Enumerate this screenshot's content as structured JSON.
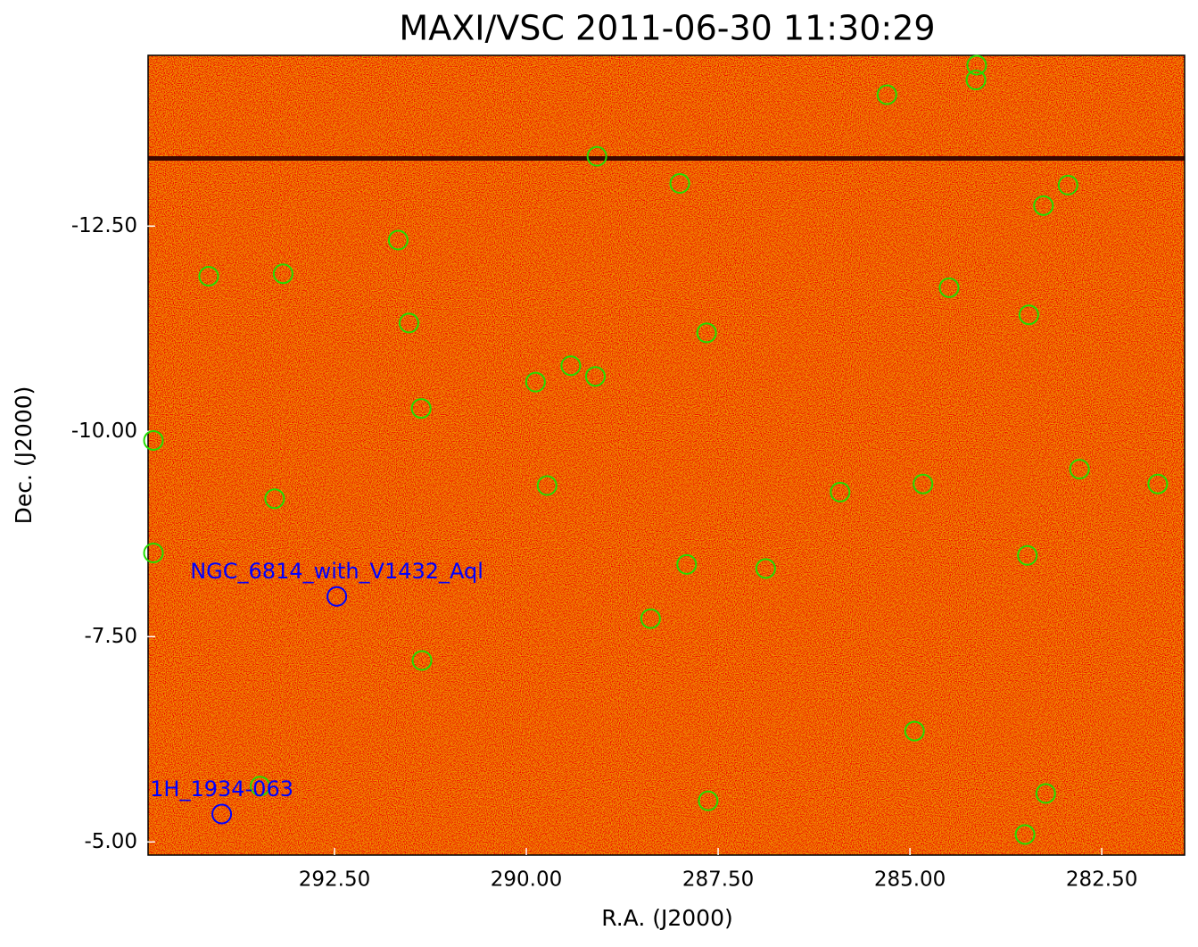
{
  "chart_data": {
    "type": "scatter",
    "title": "MAXI/VSC 2011-06-30 11:30:29",
    "x_label": "R.A. (J2000)",
    "y_label": "Dec. (J2000)",
    "xlim": [
      294.93,
      281.42
    ],
    "ylim": [
      -4.84,
      -14.58
    ],
    "xticks": [
      {
        "value": 292.5,
        "label": "292.50"
      },
      {
        "value": 290,
        "label": "290.00"
      },
      {
        "value": 287.5,
        "label": "287.50"
      },
      {
        "value": 285,
        "label": "285.00"
      },
      {
        "value": 282.5,
        "label": "282.50"
      }
    ],
    "yticks": [
      {
        "value": -12.5,
        "label": "-12.50"
      },
      {
        "value": -10,
        "label": "-10.00"
      },
      {
        "value": -7.5,
        "label": "-7.50"
      },
      {
        "value": -5,
        "label": "-5.00"
      }
    ],
    "series": [
      {
        "color": "#22dd00",
        "x": [
          284.13,
          284.14,
          285.3,
          289.08,
          288.0,
          282.94,
          283.26,
          291.67,
          294.14,
          293.17,
          284.49,
          283.45,
          291.53,
          287.65,
          289.42,
          289.88,
          289.1,
          291.37,
          294.86,
          282.79,
          289.73,
          284.83,
          281.77,
          285.91,
          293.28,
          294.86,
          283.47,
          287.91,
          286.88,
          288.38,
          291.36,
          284.94,
          293.47,
          283.23,
          287.63,
          283.5
        ],
        "values": [
          -14.46,
          -14.28,
          -14.1,
          -13.35,
          -13.02,
          -13.0,
          -12.75,
          -12.33,
          -11.89,
          -11.92,
          -11.75,
          -11.42,
          -11.32,
          -11.2,
          -10.8,
          -10.6,
          -10.67,
          -10.28,
          -9.89,
          -9.54,
          -9.34,
          -9.36,
          -9.36,
          -9.26,
          -9.18,
          -8.52,
          -8.49,
          -8.38,
          -8.33,
          -7.72,
          -7.21,
          -6.35,
          -5.68,
          -5.59,
          -5.5,
          -5.09
        ]
      }
    ],
    "annotations": [
      {
        "text": "NGC_6814_with_V1432_Aql",
        "x": 292.47,
        "y": -7.99,
        "color": "#0000ff"
      },
      {
        "text": "1H_1934-063",
        "x": 293.97,
        "y": -5.34,
        "color": "#0000ff"
      }
    ]
  }
}
